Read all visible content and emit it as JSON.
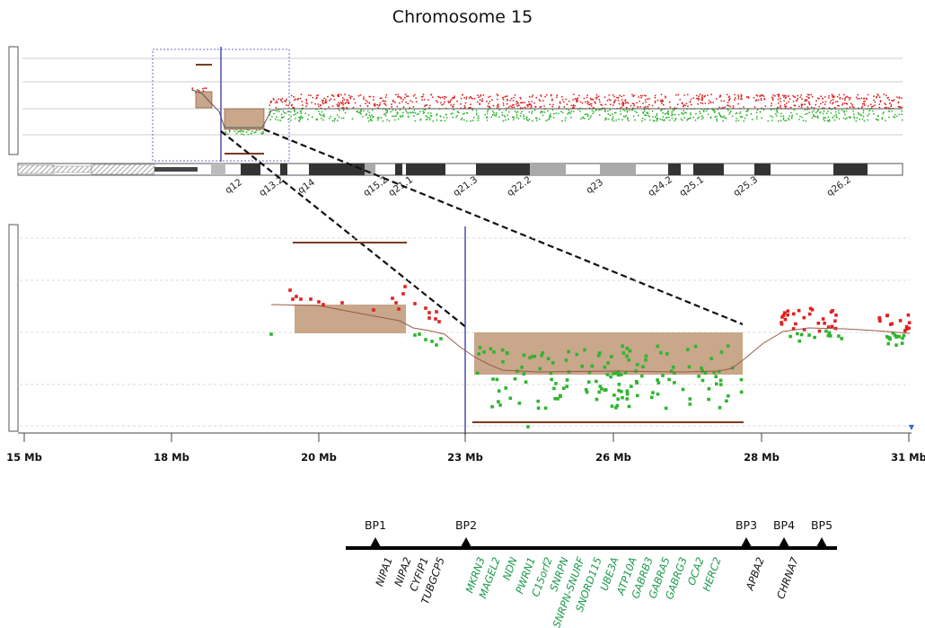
{
  "title": "Chromosome 15",
  "ideogram_bands": [
    "q12",
    "q13.2",
    "q14",
    "q15.2",
    "q21.1",
    "q21.3",
    "q22.2",
    "q23",
    "q24.2",
    "q25.1",
    "q25.3",
    "q26.2"
  ],
  "axis_ticks": [
    "15 Mb",
    "18 Mb",
    "20 Mb",
    "23 Mb",
    "26 Mb",
    "28 Mb",
    "31 Mb"
  ],
  "breakpoints": [
    "BP1",
    "BP2",
    "BP3",
    "BP4",
    "BP5"
  ],
  "genes": [
    {
      "name": "NIPA1",
      "color": "#111111"
    },
    {
      "name": "NIPA2",
      "color": "#111111"
    },
    {
      "name": "CYFIP1",
      "color": "#111111"
    },
    {
      "name": "TUBGCP5",
      "color": "#111111"
    },
    {
      "name": "MKRN3",
      "color": "#1a9a4a"
    },
    {
      "name": "MAGEL2",
      "color": "#1a9a4a"
    },
    {
      "name": "NDN",
      "color": "#1a9a4a"
    },
    {
      "name": "PWRN1",
      "color": "#1a9a4a"
    },
    {
      "name": "C15orf2",
      "color": "#1a9a4a"
    },
    {
      "name": "SNRPN",
      "color": "#1a9a4a"
    },
    {
      "name": "SNRPN-SNURF",
      "color": "#1a9a4a"
    },
    {
      "name": "SNORD115",
      "color": "#1a9a4a"
    },
    {
      "name": "UBE3A",
      "color": "#1a9a4a"
    },
    {
      "name": "ATP10A",
      "color": "#1a9a4a"
    },
    {
      "name": "GABRB3",
      "color": "#1a9a4a"
    },
    {
      "name": "GABRA5",
      "color": "#1a9a4a"
    },
    {
      "name": "GABRG3",
      "color": "#1a9a4a"
    },
    {
      "name": "OCA2",
      "color": "#1a9a4a"
    },
    {
      "name": "HERC2",
      "color": "#1a9a4a"
    },
    {
      "name": "APBA2",
      "color": "#111111"
    },
    {
      "name": "CHRNA7",
      "color": "#111111"
    }
  ],
  "colors": {
    "gain": "#e02020",
    "loss": "#2fb52f",
    "region": "#c8a78a",
    "trace": "#8b3a2a",
    "guide": "#6d6dcc",
    "gene_green": "#1a9a4a"
  }
}
